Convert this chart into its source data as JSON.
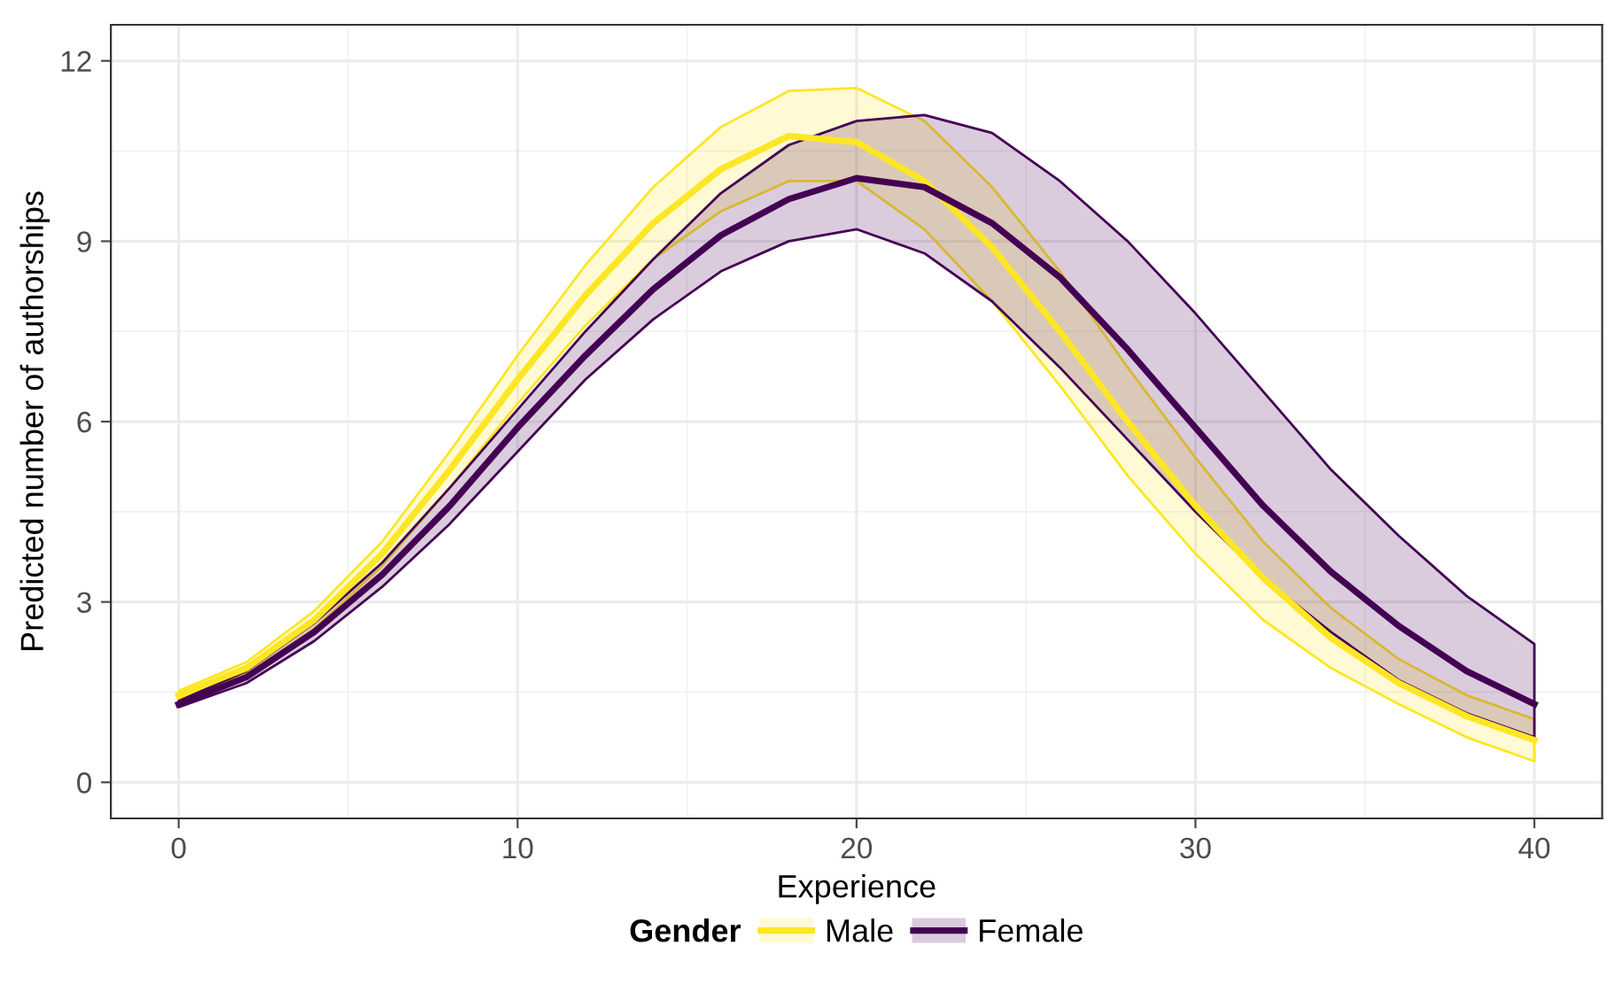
{
  "chart_data": {
    "type": "line",
    "xlabel": "Experience",
    "ylabel": "Predicted number of authorships",
    "legend_title": "Gender",
    "legend": "bottom",
    "grid": true,
    "marker": "none",
    "line_style": "solid",
    "x": [
      0,
      2,
      4,
      6,
      8,
      10,
      12,
      14,
      16,
      18,
      20,
      22,
      24,
      26,
      28,
      30,
      32,
      34,
      36,
      38,
      40
    ],
    "xlim": [
      -2,
      42
    ],
    "xticks": [
      0,
      10,
      20,
      30,
      40
    ],
    "ylim": [
      -0.6,
      12.6
    ],
    "yticks": [
      0,
      3,
      6,
      9,
      12
    ],
    "series": [
      {
        "name": "Male",
        "color": "#fde725",
        "values": [
          1.45,
          1.9,
          2.7,
          3.8,
          5.2,
          6.7,
          8.1,
          9.3,
          10.2,
          10.75,
          10.65,
          10.0,
          8.9,
          7.5,
          6.0,
          4.6,
          3.4,
          2.4,
          1.65,
          1.1,
          0.7
        ],
        "upper": [
          1.52,
          2.0,
          2.85,
          4.0,
          5.5,
          7.1,
          8.6,
          9.9,
          10.9,
          11.5,
          11.55,
          11.0,
          9.9,
          8.5,
          6.9,
          5.4,
          4.0,
          2.9,
          2.05,
          1.45,
          1.05
        ],
        "lower": [
          1.38,
          1.8,
          2.55,
          3.6,
          4.9,
          6.3,
          7.6,
          8.7,
          9.5,
          10.0,
          10.0,
          9.2,
          8.0,
          6.6,
          5.1,
          3.8,
          2.7,
          1.9,
          1.3,
          0.75,
          0.35
        ]
      },
      {
        "name": "Female",
        "color": "#440154",
        "values": [
          1.3,
          1.75,
          2.5,
          3.45,
          4.6,
          5.9,
          7.1,
          8.2,
          9.1,
          9.7,
          10.05,
          9.9,
          9.3,
          8.4,
          7.2,
          5.9,
          4.6,
          3.5,
          2.6,
          1.85,
          1.3
        ],
        "upper": [
          1.35,
          1.85,
          2.65,
          3.65,
          4.9,
          6.2,
          7.5,
          8.7,
          9.8,
          10.6,
          11.0,
          11.1,
          10.8,
          10.0,
          9.0,
          7.8,
          6.5,
          5.2,
          4.1,
          3.1,
          2.3
        ],
        "lower": [
          1.25,
          1.65,
          2.35,
          3.25,
          4.3,
          5.5,
          6.7,
          7.7,
          8.5,
          9.0,
          9.2,
          8.8,
          8.0,
          6.9,
          5.7,
          4.5,
          3.4,
          2.5,
          1.7,
          1.15,
          0.75
        ]
      }
    ]
  }
}
